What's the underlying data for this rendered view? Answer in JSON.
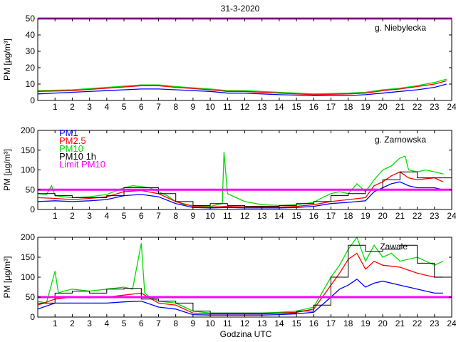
{
  "figure": {
    "title": "31-3-2020",
    "xlabel": "Godzina UTC"
  },
  "colors": {
    "pm1": "#0000ff",
    "pm25": "#ff0000",
    "pm10": "#00dd00",
    "pm10_1h": "#000000",
    "limit": "#ff00ff"
  },
  "chart_data": [
    {
      "type": "line",
      "station": "g. Niebylecka",
      "ylabel": "PM [µg/m³]",
      "xlim": [
        0,
        24
      ],
      "ylim": [
        0,
        50
      ],
      "yticks": [
        0,
        10,
        20,
        30,
        40,
        50
      ],
      "xticks": [
        1,
        2,
        3,
        4,
        5,
        6,
        7,
        8,
        9,
        10,
        11,
        12,
        13,
        14,
        15,
        16,
        17,
        18,
        19,
        20,
        21,
        22,
        23,
        24
      ],
      "limit_pm10": 50,
      "series": [
        {
          "key": "pm10",
          "x": [
            0,
            2,
            4,
            6,
            7,
            8,
            10,
            11,
            12,
            14,
            16,
            18,
            19,
            20,
            21,
            22,
            23,
            23.7
          ],
          "y": [
            6,
            6.5,
            8,
            9.5,
            9.5,
            8.5,
            7,
            6,
            6,
            5,
            4,
            4.5,
            5,
            6.5,
            7.5,
            9,
            11,
            13
          ]
        },
        {
          "key": "pm25",
          "x": [
            0,
            2,
            4,
            6,
            7,
            8,
            10,
            11,
            12,
            14,
            16,
            18,
            19,
            20,
            21,
            22,
            23,
            23.7
          ],
          "y": [
            5.5,
            6,
            7.5,
            9,
            9,
            8,
            6.5,
            5.5,
            5.5,
            4.5,
            3.5,
            4,
            4.5,
            6,
            7,
            8.5,
            10,
            12
          ]
        },
        {
          "key": "pm1",
          "x": [
            0,
            2,
            4,
            6,
            7,
            8,
            10,
            11,
            12,
            14,
            16,
            18,
            19,
            20,
            21,
            22,
            23,
            23.7
          ],
          "y": [
            4,
            5,
            6,
            7,
            7,
            6.5,
            5.5,
            4.5,
            4.5,
            3.5,
            3,
            3,
            3.5,
            4.5,
            5.5,
            6.5,
            8,
            10
          ]
        }
      ]
    },
    {
      "type": "line",
      "station": "g. Zarnowska",
      "ylabel": "PM [µg/m³]",
      "xlim": [
        0,
        24
      ],
      "ylim": [
        0,
        200
      ],
      "yticks": [
        0,
        50,
        100,
        150,
        200
      ],
      "xticks": [
        1,
        2,
        3,
        4,
        5,
        6,
        7,
        8,
        9,
        10,
        11,
        12,
        13,
        14,
        15,
        16,
        17,
        18,
        19,
        20,
        21,
        22,
        23,
        24
      ],
      "limit_pm10": 50,
      "legend": [
        "PM1",
        "PM2.5",
        "PM10",
        "PM10 1h",
        "Limit PM10"
      ],
      "series": [
        {
          "key": "pm10",
          "x": [
            0,
            0.5,
            0.8,
            1,
            1.5,
            2,
            3,
            4,
            5,
            5.5,
            6,
            6.5,
            7,
            7.5,
            8,
            8.5,
            9,
            10,
            10.7,
            10.8,
            11,
            11.5,
            12,
            13,
            14,
            15,
            16,
            16.5,
            17,
            17.5,
            18,
            18.5,
            19,
            19.5,
            20,
            20.5,
            21,
            21.3,
            21.5,
            22,
            22.5,
            23,
            23.5
          ],
          "y": [
            40,
            38,
            60,
            35,
            32,
            30,
            32,
            38,
            55,
            60,
            58,
            55,
            45,
            35,
            20,
            12,
            10,
            8,
            15,
            145,
            40,
            30,
            20,
            12,
            10,
            12,
            18,
            30,
            40,
            45,
            40,
            65,
            45,
            75,
            100,
            110,
            130,
            135,
            100,
            95,
            100,
            95,
            90
          ]
        },
        {
          "key": "pm25",
          "x": [
            0,
            1,
            2,
            3,
            4,
            5,
            6,
            7,
            8,
            9,
            10,
            11,
            12,
            13,
            14,
            15,
            16,
            17,
            18,
            19,
            19.5,
            20,
            20.5,
            21,
            21.5,
            22,
            23,
            23.5
          ],
          "y": [
            30,
            28,
            25,
            28,
            32,
            45,
            48,
            40,
            20,
            8,
            6,
            8,
            7,
            6,
            6,
            8,
            12,
            20,
            25,
            30,
            60,
            70,
            85,
            95,
            80,
            75,
            80,
            70
          ]
        },
        {
          "key": "pm1",
          "x": [
            0,
            1,
            2,
            3,
            4,
            5,
            6,
            7,
            8,
            9,
            10,
            11,
            12,
            13,
            14,
            15,
            16,
            17,
            18,
            19,
            19.5,
            20,
            20.5,
            21,
            21.5,
            22,
            23,
            23.5
          ],
          "y": [
            20,
            22,
            20,
            22,
            25,
            35,
            38,
            32,
            15,
            5,
            4,
            5,
            4,
            4,
            4,
            5,
            8,
            15,
            18,
            22,
            45,
            55,
            65,
            70,
            60,
            55,
            55,
            50
          ]
        },
        {
          "key": "pm10_1h",
          "x": [
            0,
            1,
            2,
            3,
            4,
            5,
            6,
            7,
            8,
            9,
            10,
            11,
            12,
            13,
            14,
            15,
            16,
            17,
            18,
            19,
            20,
            21,
            22,
            23,
            24
          ],
          "y": [
            40,
            35,
            30,
            30,
            35,
            55,
            55,
            40,
            20,
            10,
            15,
            10,
            8,
            8,
            10,
            15,
            20,
            35,
            40,
            50,
            75,
            95,
            80,
            80,
            80
          ]
        }
      ]
    },
    {
      "type": "line",
      "station": "Zawale",
      "ylabel": "PM [µg/m³]",
      "xlim": [
        0,
        24
      ],
      "ylim": [
        0,
        200
      ],
      "yticks": [
        0,
        50,
        100,
        150,
        200
      ],
      "xticks": [
        1,
        2,
        3,
        4,
        5,
        6,
        7,
        8,
        9,
        10,
        11,
        12,
        13,
        14,
        15,
        16,
        17,
        18,
        19,
        20,
        21,
        22,
        23,
        24
      ],
      "limit_pm10": 50,
      "series": [
        {
          "key": "pm10",
          "x": [
            0,
            0.5,
            1,
            1.2,
            1.5,
            2,
            3,
            4,
            5,
            5.5,
            6,
            6.2,
            6.5,
            7,
            8,
            9,
            10,
            11,
            12,
            13,
            14,
            15,
            16,
            17,
            17.5,
            18,
            18.5,
            19,
            19.5,
            20,
            20.5,
            21,
            22,
            23,
            23.5
          ],
          "y": [
            40,
            35,
            115,
            60,
            65,
            70,
            65,
            70,
            75,
            70,
            185,
            60,
            50,
            40,
            35,
            15,
            10,
            10,
            10,
            10,
            12,
            15,
            25,
            100,
            130,
            170,
            200,
            140,
            180,
            150,
            160,
            140,
            150,
            130,
            140
          ]
        },
        {
          "key": "pm25",
          "x": [
            0,
            1,
            2,
            3,
            4,
            5,
            6,
            7,
            8,
            9,
            10,
            11,
            12,
            13,
            14,
            15,
            16,
            17,
            17.5,
            18,
            18.5,
            19,
            19.5,
            20,
            21,
            22,
            23,
            23.5
          ],
          "y": [
            30,
            45,
            50,
            48,
            50,
            55,
            60,
            35,
            30,
            10,
            8,
            8,
            8,
            8,
            10,
            12,
            20,
            80,
            110,
            145,
            160,
            120,
            140,
            130,
            125,
            110,
            100,
            100
          ]
        },
        {
          "key": "pm1",
          "x": [
            0,
            1,
            2,
            3,
            4,
            5,
            6,
            7,
            8,
            9,
            10,
            11,
            12,
            13,
            14,
            15,
            16,
            17,
            17.5,
            18,
            18.5,
            19,
            19.5,
            20,
            21,
            22,
            23,
            23.5
          ],
          "y": [
            20,
            35,
            35,
            35,
            35,
            38,
            40,
            25,
            20,
            6,
            5,
            5,
            5,
            5,
            6,
            8,
            12,
            50,
            70,
            80,
            95,
            75,
            85,
            90,
            80,
            70,
            60,
            60
          ]
        },
        {
          "key": "pm10_1h",
          "x": [
            0,
            1,
            2,
            3,
            4,
            5,
            6,
            7,
            8,
            9,
            10,
            11,
            12,
            13,
            14,
            15,
            16,
            17,
            18,
            19,
            20,
            21,
            22,
            23,
            24
          ],
          "y": [
            35,
            60,
            65,
            60,
            70,
            72,
            45,
            40,
            35,
            15,
            10,
            10,
            10,
            10,
            10,
            15,
            30,
            100,
            180,
            165,
            170,
            180,
            135,
            100,
            100
          ]
        }
      ]
    }
  ]
}
